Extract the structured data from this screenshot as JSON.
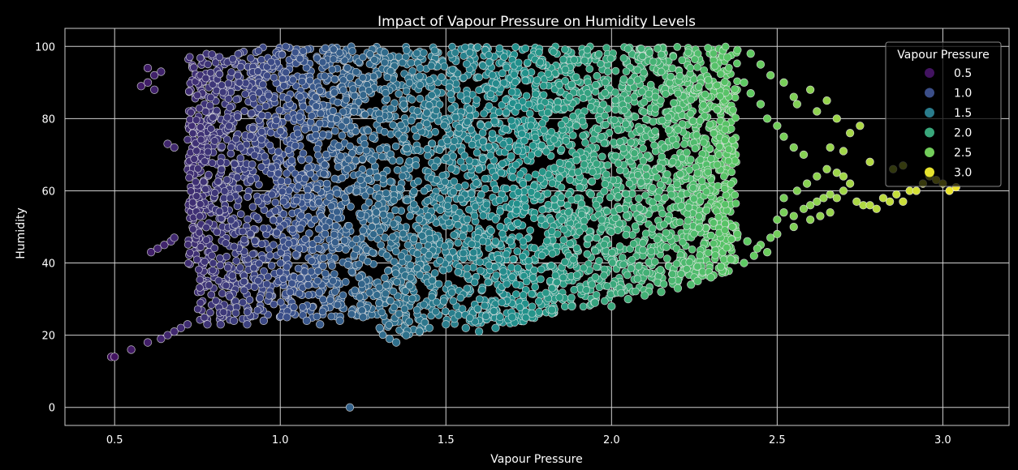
{
  "chart_data": {
    "type": "scatter",
    "title": "Impact of Vapour Pressure on Humidity Levels",
    "xlabel": "Vapour Pressure",
    "ylabel": "Humidity",
    "xlim": [
      0.35,
      3.2
    ],
    "ylim": [
      -5,
      105
    ],
    "xticks": [
      0.5,
      1.0,
      1.5,
      2.0,
      2.5,
      3.0
    ],
    "xtick_labels": [
      "0.5",
      "1.0",
      "1.5",
      "2.0",
      "2.5",
      "3.0"
    ],
    "yticks": [
      0,
      20,
      40,
      60,
      80,
      100
    ],
    "ytick_labels": [
      "0",
      "20",
      "40",
      "60",
      "80",
      "100"
    ],
    "grid": true,
    "colormap": "viridis",
    "color_range": [
      0.35,
      3.1
    ],
    "legend": {
      "title": "Vapour Pressure",
      "placement": "top-right",
      "labels": [
        "0.5",
        "1.0",
        "1.5",
        "2.0",
        "2.5",
        "3.0"
      ],
      "values": [
        0.5,
        1.0,
        1.5,
        2.0,
        2.5,
        3.0
      ]
    },
    "points": [
      [
        0.49,
        14
      ],
      [
        0.5,
        14
      ],
      [
        0.55,
        16
      ],
      [
        0.6,
        18
      ],
      [
        0.64,
        19
      ],
      [
        0.66,
        20
      ],
      [
        0.68,
        21
      ],
      [
        0.7,
        22
      ],
      [
        0.72,
        23
      ],
      [
        0.61,
        43
      ],
      [
        0.63,
        44
      ],
      [
        0.65,
        45
      ],
      [
        0.67,
        46
      ],
      [
        0.68,
        47
      ],
      [
        0.66,
        73
      ],
      [
        0.68,
        72
      ],
      [
        0.58,
        89
      ],
      [
        0.6,
        90
      ],
      [
        0.62,
        92
      ],
      [
        0.6,
        94
      ],
      [
        0.64,
        93
      ],
      [
        0.62,
        88
      ],
      [
        1.21,
        0
      ],
      [
        0.78,
        23
      ],
      [
        0.82,
        23
      ],
      [
        0.86,
        24
      ],
      [
        0.9,
        23
      ],
      [
        0.95,
        24
      ],
      [
        1.02,
        25
      ],
      [
        1.08,
        24
      ],
      [
        1.12,
        23
      ],
      [
        1.18,
        24
      ],
      [
        1.25,
        25
      ],
      [
        1.3,
        22
      ],
      [
        1.33,
        19
      ],
      [
        1.35,
        18
      ],
      [
        1.38,
        20
      ],
      [
        1.42,
        21
      ],
      [
        1.45,
        22
      ],
      [
        1.5,
        23
      ],
      [
        1.56,
        22
      ],
      [
        1.6,
        21
      ],
      [
        1.65,
        22
      ],
      [
        1.7,
        25
      ],
      [
        1.76,
        26
      ],
      [
        1.82,
        27
      ],
      [
        1.88,
        28
      ],
      [
        1.95,
        29
      ],
      [
        2.0,
        28
      ],
      [
        2.05,
        30
      ],
      [
        2.1,
        31
      ],
      [
        2.15,
        32
      ],
      [
        2.2,
        33
      ],
      [
        2.24,
        34
      ],
      [
        2.26,
        35
      ],
      [
        2.3,
        36
      ],
      [
        2.33,
        39
      ],
      [
        2.36,
        41
      ],
      [
        2.4,
        40
      ],
      [
        2.43,
        42
      ],
      [
        2.45,
        45
      ],
      [
        2.48,
        47
      ],
      [
        2.5,
        52
      ],
      [
        2.52,
        54
      ],
      [
        2.55,
        53
      ],
      [
        2.58,
        55
      ],
      [
        2.6,
        56
      ],
      [
        2.62,
        57
      ],
      [
        2.64,
        58
      ],
      [
        2.66,
        59
      ],
      [
        2.68,
        58
      ],
      [
        2.7,
        60
      ],
      [
        2.72,
        62
      ],
      [
        2.74,
        57
      ],
      [
        2.76,
        56
      ],
      [
        2.78,
        56
      ],
      [
        2.8,
        55
      ],
      [
        2.82,
        58
      ],
      [
        2.84,
        57
      ],
      [
        2.86,
        59
      ],
      [
        2.88,
        57
      ],
      [
        2.9,
        60
      ],
      [
        2.92,
        60
      ],
      [
        2.94,
        62
      ],
      [
        2.96,
        64
      ],
      [
        2.98,
        63
      ],
      [
        3.0,
        62
      ],
      [
        3.02,
        60
      ],
      [
        3.04,
        61
      ],
      [
        2.88,
        67
      ],
      [
        2.85,
        66
      ],
      [
        2.78,
        68
      ],
      [
        2.7,
        71
      ],
      [
        2.66,
        72
      ],
      [
        2.72,
        76
      ],
      [
        2.75,
        78
      ],
      [
        2.68,
        80
      ],
      [
        2.62,
        82
      ],
      [
        2.65,
        85
      ],
      [
        2.6,
        88
      ],
      [
        2.55,
        86
      ],
      [
        2.56,
        84
      ],
      [
        2.52,
        90
      ],
      [
        2.48,
        92
      ],
      [
        2.45,
        95
      ],
      [
        2.42,
        98
      ],
      [
        2.38,
        99
      ],
      [
        2.35,
        97
      ],
      [
        2.5,
        48
      ],
      [
        2.47,
        43
      ],
      [
        2.44,
        44
      ],
      [
        2.41,
        46
      ],
      [
        2.38,
        48
      ],
      [
        2.55,
        50
      ],
      [
        2.6,
        52
      ],
      [
        2.63,
        53
      ],
      [
        2.66,
        54
      ],
      [
        2.52,
        58
      ],
      [
        2.56,
        60
      ],
      [
        2.59,
        62
      ],
      [
        2.62,
        64
      ],
      [
        2.65,
        66
      ],
      [
        2.68,
        65
      ],
      [
        2.7,
        64
      ],
      [
        2.58,
        70
      ],
      [
        2.55,
        72
      ],
      [
        2.52,
        75
      ],
      [
        2.5,
        78
      ],
      [
        2.47,
        80
      ],
      [
        2.45,
        84
      ],
      [
        2.42,
        87
      ],
      [
        2.4,
        90
      ]
    ]
  }
}
